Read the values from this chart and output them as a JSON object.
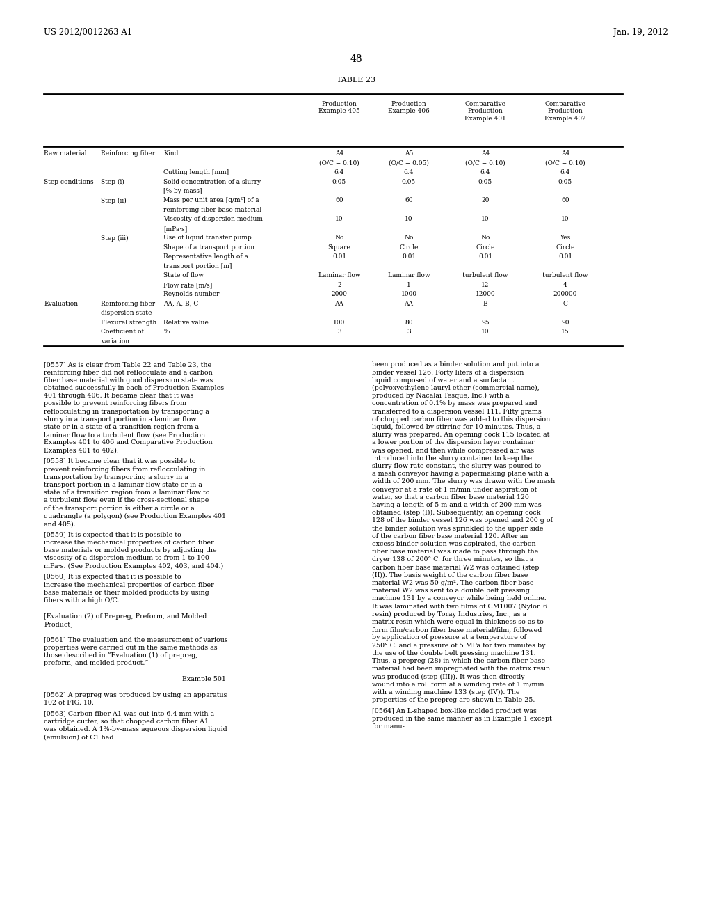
{
  "page_number": "48",
  "header_left": "US 2012/0012263 A1",
  "header_right": "Jan. 19, 2012",
  "table_title": "TABLE 23",
  "background_color": "#ffffff",
  "text_color": "#000000",
  "body_font_size": 6.8,
  "header_font_size": 8.5,
  "table_font_size": 6.5,
  "page_num_font_size": 10.0,
  "table_rows": [
    [
      "Raw material",
      "Reinforcing fiber",
      "Kind",
      "A4",
      "A5",
      "A4",
      "A4"
    ],
    [
      "",
      "",
      "",
      "(O/C = 0.10)",
      "(O/C = 0.05)",
      "(O/C = 0.10)",
      "(O/C = 0.10)"
    ],
    [
      "",
      "",
      "Cutting length [mm]",
      "6.4",
      "6.4",
      "6.4",
      "6.4"
    ],
    [
      "Step conditions",
      "Step (i)",
      "Solid concentration of a slurry",
      "0.05",
      "0.05",
      "0.05",
      "0.05"
    ],
    [
      "",
      "",
      "[% by mass]",
      "",
      "",
      "",
      ""
    ],
    [
      "",
      "Step (ii)",
      "Mass per unit area [g/m²] of a",
      "60",
      "60",
      "20",
      "60"
    ],
    [
      "",
      "",
      "reinforcing fiber base material",
      "",
      "",
      "",
      ""
    ],
    [
      "",
      "",
      "Viscosity of dispersion medium",
      "10",
      "10",
      "10",
      "10"
    ],
    [
      "",
      "",
      "[mPa·s]",
      "",
      "",
      "",
      ""
    ],
    [
      "",
      "Step (iii)",
      "Use of liquid transfer pump",
      "No",
      "No",
      "No",
      "Yes"
    ],
    [
      "",
      "",
      "Shape of a transport portion",
      "Square",
      "Circle",
      "Circle",
      "Circle"
    ],
    [
      "",
      "",
      "Representative length of a",
      "0.01",
      "0.01",
      "0.01",
      "0.01"
    ],
    [
      "",
      "",
      "transport portion [m]",
      "",
      "",
      "",
      ""
    ],
    [
      "",
      "",
      "State of flow",
      "Laminar flow",
      "Laminar flow",
      "turbulent flow",
      "turbulent flow"
    ],
    [
      "",
      "",
      "Flow rate [m/s]",
      "2",
      "1",
      "12",
      "4"
    ],
    [
      "",
      "",
      "Reynolds number",
      "2000",
      "1000",
      "12000",
      "200000"
    ],
    [
      "Evaluation",
      "Reinforcing fiber",
      "AA, A, B, C",
      "AA",
      "AA",
      "B",
      "C"
    ],
    [
      "",
      "dispersion state",
      "",
      "",
      "",
      "",
      ""
    ],
    [
      "",
      "Flexural strength",
      "Relative value",
      "100",
      "80",
      "95",
      "90"
    ],
    [
      "",
      "Coefficient of",
      "%",
      "3",
      "3",
      "10",
      "15"
    ],
    [
      "",
      "variation",
      "",
      "",
      "",
      "",
      ""
    ]
  ],
  "left_paragraphs": [
    {
      "tag": "[0557]",
      "indent": true,
      "text": "As is clear from Table 22 and Table 23, the reinforcing fiber did not reflocculate and a carbon fiber base material with good dispersion state was obtained successfully in each of Production Examples 401 through 406. It became clear that it was possible to prevent reinforcing fibers from reflocculating in transportation by transporting a slurry in a transport portion in a laminar flow state or in a state of a transition region from a laminar flow to a turbulent flow (see Production Examples 401 to 406 and Comparative Production Examples 401 to 402).",
      "after": 4
    },
    {
      "tag": "[0558]",
      "indent": true,
      "text": "It became clear that it was possible to prevent reinforcing fibers from reflocculating in transportation by transporting a slurry in a transport portion in a laminar flow state or in a state of a transition region from a laminar flow to a turbulent flow even if the cross-sectional shape of the transport portion is either a circle or a quadrangle (a polygon) (see Production Examples 401 and 405).",
      "after": 4
    },
    {
      "tag": "[0559]",
      "indent": true,
      "text": "It is expected that it is possible to increase the mechanical properties of carbon fiber base materials or molded products by adjusting the viscosity of a dispersion medium to from 1 to 100 mPa·s. (See Production Examples 402, 403, and 404.)",
      "after": 4
    },
    {
      "tag": "[0560]",
      "indent": true,
      "text": "It is expected that it is possible to increase the mechanical properties of carbon fiber base materials or their molded products by using fibers with a high O/C.",
      "after": 10
    },
    {
      "tag": "",
      "indent": false,
      "text": "[Evaluation (2) of Prepreg, Preform, and Molded Product]",
      "after": 10
    },
    {
      "tag": "[0561]",
      "indent": true,
      "text": "The evaluation and the measurement of various properties were carried out in the same methods as those described in “Evaluation (1) of prepreg, preform, and molded product.”",
      "after": 10
    },
    {
      "tag": "center",
      "indent": false,
      "text": "Example 501",
      "after": 10
    },
    {
      "tag": "[0562]",
      "indent": true,
      "text": "A prepreg was produced by using an apparatus 102 of FIG. 10.",
      "after": 4
    },
    {
      "tag": "[0563]",
      "indent": true,
      "text": "Carbon fiber A1 was cut into 6.4 mm with a cartridge cutter, so that chopped carbon fiber A1 was obtained. A 1%-by-mass aqueous dispersion liquid (emulsion) of C1 had",
      "after": 4
    }
  ],
  "right_paragraphs": [
    {
      "tag": "",
      "indent": false,
      "text": "been produced as a binder solution and put into a binder vessel 126. Forty liters of a dispersion liquid composed of water and a surfactant (polyoxyethylene lauryl ether (commercial name), produced by Nacalai Tesque, Inc.) with a concentration of 0.1% by mass was prepared and transferred to a dispersion vessel 111. Fifty grams of chopped carbon fiber was added to this dispersion liquid, followed by stirring for 10 minutes. Thus, a slurry was prepared. An opening cock 115 located at a lower portion of the dispersion layer container was opened, and then while compressed air was introduced into the slurry container to keep the slurry flow rate constant, the slurry was poured to a mesh conveyor having a papermaking plane with a width of 200 mm. The slurry was drawn with the mesh conveyor at a rate of 1 m/min under aspiration of water, so that a carbon fiber base material 120 having a length of 5 m and a width of 200 mm was obtained (step (I)). Subsequently, an opening cock 128 of the binder vessel 126 was opened and 200 g of the binder solution was sprinkled to the upper side of the carbon fiber base material 120. After an excess binder solution was aspirated, the carbon fiber base material was made to pass through the dryer 138 of 200° C. for three minutes, so that a carbon fiber base material W2 was obtained (step (II)). The basis weight of the carbon fiber base material W2 was 50 g/m². The carbon fiber base material W2 was sent to a double belt pressing machine 131 by a conveyor while being held online. It was laminated with two films of CM1007 (Nylon 6 resin) produced by Toray Industries, Inc., as a matrix resin which were equal in thickness so as to form film/carbon fiber base material/film, followed by application of pressure at a temperature of 250° C. and a pressure of 5 MPa for two minutes by the use of the double belt pressing machine 131. Thus, a prepreg (28) in which the carbon fiber base material had been impregnated with the matrix resin was produced (step (III)). It was then directly wound into a roll form at a winding rate of 1 m/min with a winding machine 133 (step (IV)). The properties of the prepreg are shown in Table 25.",
      "after": 4
    },
    {
      "tag": "[0564]",
      "indent": true,
      "text": "An L-shaped box-like molded product was produced in the same manner as in Example 1 except for manu-",
      "after": 4
    }
  ]
}
